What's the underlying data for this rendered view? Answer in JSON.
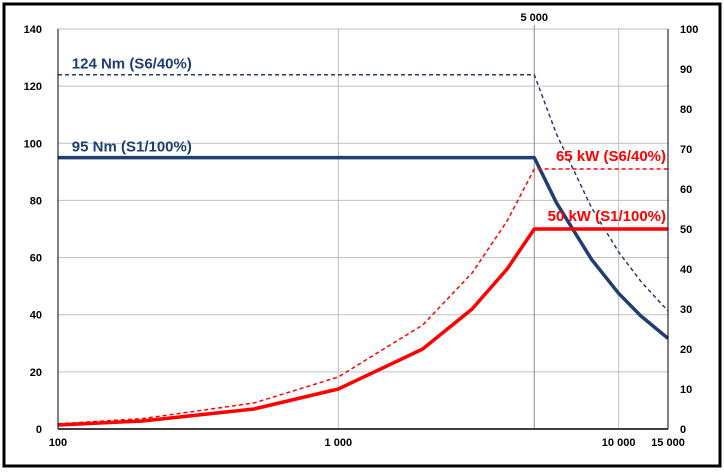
{
  "chart_data": {
    "type": "line",
    "xscale": "log",
    "xlim": [
      100,
      15000
    ],
    "y_left_lim": [
      0,
      140
    ],
    "y_right_lim": [
      0,
      100
    ],
    "x_ticks": [
      100,
      1000,
      10000,
      15000
    ],
    "x_tick_labels": [
      "100",
      "1 000",
      "10 000",
      "15 000"
    ],
    "top_tick_label": "5 000",
    "y_left_ticks": [
      0,
      20,
      40,
      60,
      80,
      100,
      120,
      140
    ],
    "y_right_ticks": [
      0,
      10,
      20,
      30,
      40,
      50,
      60,
      70,
      80,
      90,
      100
    ],
    "grid": true,
    "colors": {
      "torque": "#1f3f73",
      "power": "#ff0000",
      "grid": "#bfbfbf",
      "frame": "#000000"
    },
    "series": [
      {
        "name": "124 Nm (S6/40%)",
        "axis": "left",
        "style": "dashed",
        "color": "#1f3f73",
        "points": [
          [
            100,
            124
          ],
          [
            5000,
            124
          ],
          [
            6000,
            103.3
          ],
          [
            8000,
            77.5
          ],
          [
            10000,
            62
          ],
          [
            12000,
            51.7
          ],
          [
            15000,
            41.3
          ]
        ]
      },
      {
        "name": "95 Nm (S1/100%)",
        "axis": "left",
        "style": "solid",
        "color": "#1f3f73",
        "points": [
          [
            100,
            95
          ],
          [
            5000,
            95
          ],
          [
            6000,
            79.2
          ],
          [
            8000,
            59.4
          ],
          [
            10000,
            47.5
          ],
          [
            12000,
            39.6
          ],
          [
            15000,
            31.7
          ]
        ]
      },
      {
        "name": "65 kW (S6/40%)",
        "axis": "right",
        "style": "dashed",
        "color": "#ff0000",
        "points": [
          [
            100,
            1.3
          ],
          [
            200,
            2.6
          ],
          [
            500,
            6.5
          ],
          [
            1000,
            13
          ],
          [
            2000,
            26
          ],
          [
            3000,
            39
          ],
          [
            4000,
            52
          ],
          [
            5000,
            65
          ],
          [
            15000,
            65
          ]
        ]
      },
      {
        "name": "50 kW (S1/100%)",
        "axis": "right",
        "style": "solid",
        "color": "#ff0000",
        "points": [
          [
            100,
            1
          ],
          [
            200,
            2
          ],
          [
            500,
            5
          ],
          [
            1000,
            10
          ],
          [
            2000,
            20
          ],
          [
            3000,
            30
          ],
          [
            4000,
            40
          ],
          [
            5000,
            50
          ],
          [
            15000,
            50
          ]
        ]
      }
    ],
    "annotations": [
      {
        "text": "124 Nm (S6/40%)",
        "color": "#1f3f73"
      },
      {
        "text": "95 Nm (S1/100%)",
        "color": "#1f3f73"
      },
      {
        "text": "65 kW (S6/40%)",
        "color": "#ff0000"
      },
      {
        "text": "50 kW (S1/100%)",
        "color": "#ff0000"
      }
    ]
  }
}
